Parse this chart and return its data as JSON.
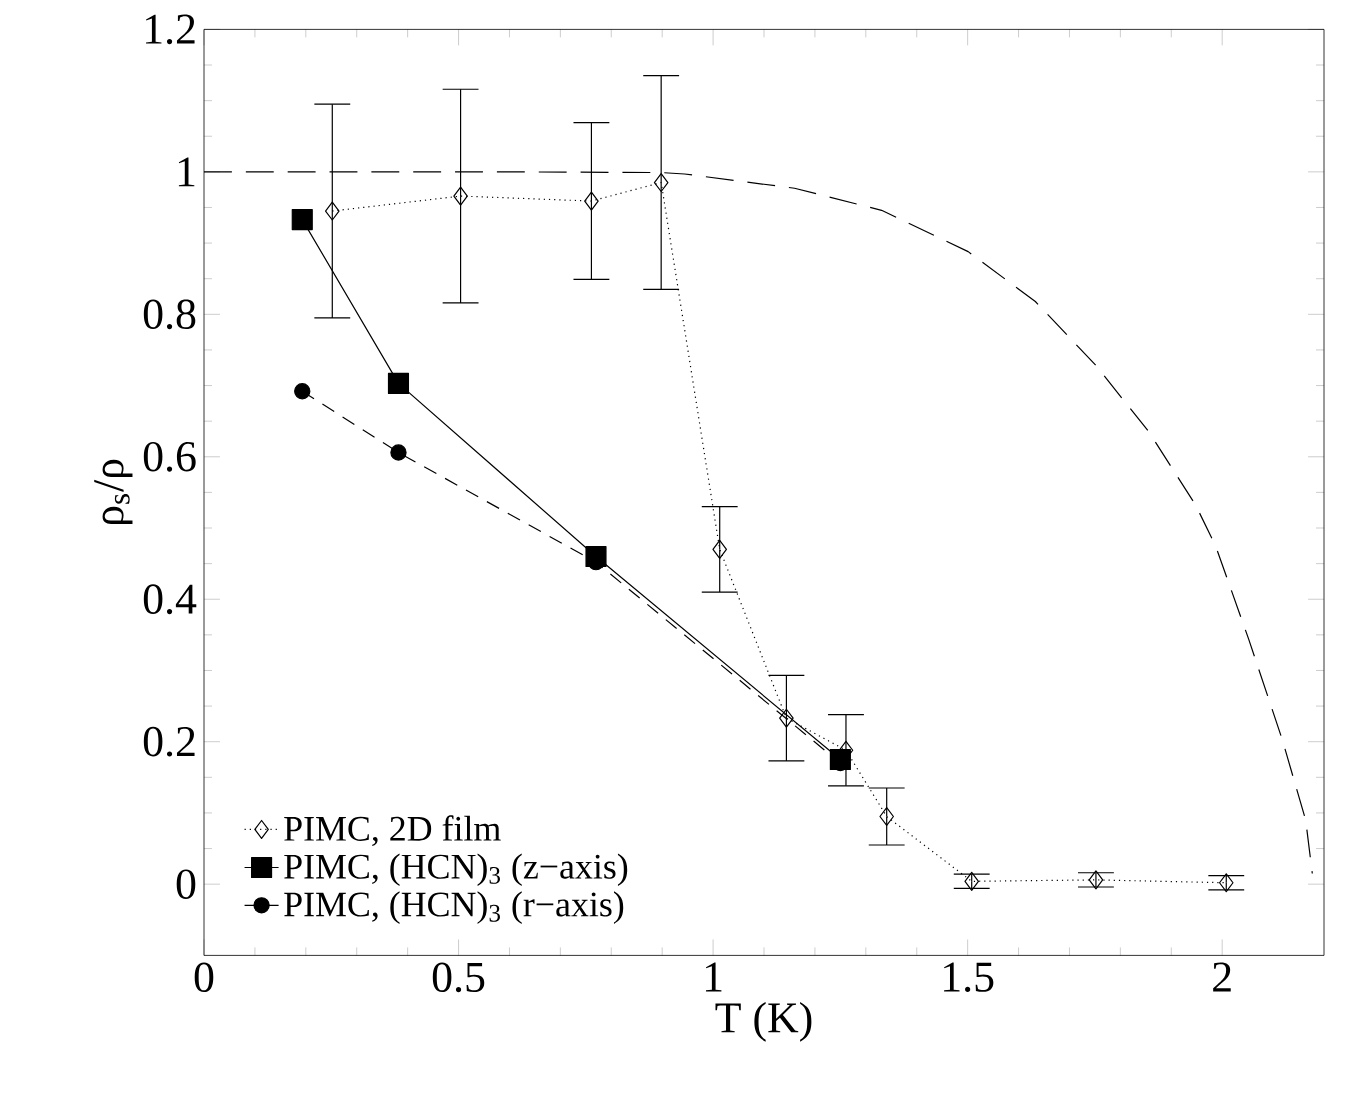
{
  "chart_data": {
    "type": "line",
    "xlabel": "T (K)",
    "ylabel": "ρ$_{s}$/ρ",
    "xlim": [
      0,
      2.2
    ],
    "ylim": [
      -0.1,
      1.2
    ],
    "xticks": [
      0,
      0.5,
      1,
      1.5,
      2
    ],
    "yticks": [
      0,
      0.2,
      0.4,
      0.6,
      0.8,
      1,
      1.2
    ],
    "legend": "bottom left",
    "series": [
      {
        "name": "PIMC, 2D film",
        "color": "#000000",
        "marker": "diamond",
        "line_style": "dotted",
        "x": [
          0.252,
          0.504,
          0.761,
          0.898,
          1.013,
          1.144,
          1.261,
          1.341,
          1.508,
          1.752,
          2.008
        ],
        "values": [
          0.945,
          0.966,
          0.959,
          0.985,
          0.47,
          0.233,
          0.188,
          0.095,
          0.004,
          0.006,
          0.002
        ],
        "errors": [
          0.15,
          0.15,
          0.11,
          0.15,
          0.06,
          0.06,
          0.05,
          0.04,
          0.01,
          0.01,
          0.01
        ]
      },
      {
        "name": "PIMC, (HCN)$_{3}$ (z−axis)",
        "color": "#000000",
        "marker": "square",
        "line_style": "solid",
        "x": [
          0.193,
          0.382,
          0.77,
          1.25
        ],
        "values": [
          0.933,
          0.703,
          0.46,
          0.175
        ]
      },
      {
        "name": "PIMC, (HCN)$_{3}$ (r−axis)",
        "color": "#000000",
        "marker": "circle",
        "line_style": "dashed",
        "x": [
          0.193,
          0.382,
          0.77,
          1.25
        ],
        "values": [
          0.692,
          0.606,
          0.452,
          0.17
        ]
      },
      {
        "color": "#000000",
        "marker": "none",
        "line_style": "longdashed",
        "x": [
          0,
          0.6,
          0.898,
          0.944,
          1.16,
          1.331,
          1.501,
          1.633,
          1.751,
          1.856,
          1.948,
          1.987,
          2.052,
          2.118,
          2.164,
          2.177
        ],
        "values": [
          1,
          1,
          0.999,
          0.997,
          0.977,
          0.946,
          0.888,
          0.818,
          0.729,
          0.635,
          0.532,
          0.475,
          0.344,
          0.203,
          0.09,
          0.015
        ]
      }
    ]
  }
}
